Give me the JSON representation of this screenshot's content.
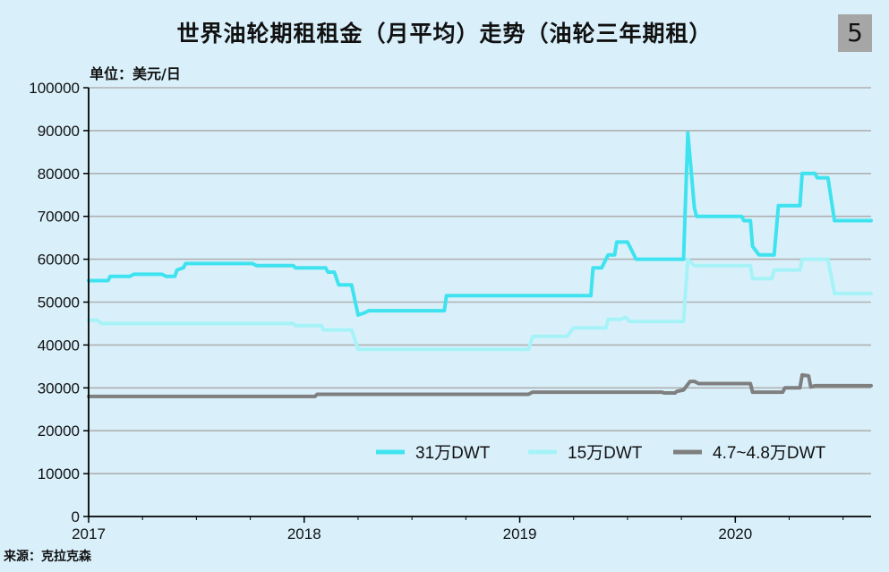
{
  "header": {
    "title": "世界油轮期租租金（月平均）走势（油轮三年期租）",
    "badge": "5",
    "unit": "单位：美元/日",
    "source": "来源：克拉克森"
  },
  "chart_data": {
    "type": "line",
    "title": "世界油轮期租租金（月平均）走势（油轮三年期租）",
    "ylabel": "单位：美元/日",
    "xlabel": "",
    "ylim": [
      0,
      100000
    ],
    "yticks": [
      0,
      10000,
      20000,
      30000,
      40000,
      50000,
      60000,
      70000,
      80000,
      90000,
      100000
    ],
    "xlim": [
      2017.0,
      2020.63
    ],
    "xticks": [
      "2017",
      "2018",
      "2019",
      "2020"
    ],
    "grid": "horizontal",
    "legend_position": "bottom-right",
    "colors": {
      "background": "#d9f0fb",
      "grid": "#b0b0b0",
      "axis": "#000000"
    },
    "series": [
      {
        "name": "31万DWT",
        "color": "#3fe3ef",
        "points": [
          [
            2017.0,
            55000
          ],
          [
            2017.04,
            55000
          ],
          [
            2017.09,
            55000
          ],
          [
            2017.1,
            56000
          ],
          [
            2017.19,
            56000
          ],
          [
            2017.21,
            56500
          ],
          [
            2017.34,
            56500
          ],
          [
            2017.36,
            56000
          ],
          [
            2017.4,
            56000
          ],
          [
            2017.41,
            57500
          ],
          [
            2017.44,
            58000
          ],
          [
            2017.45,
            59000
          ],
          [
            2017.76,
            59000
          ],
          [
            2017.78,
            58500
          ],
          [
            2017.95,
            58500
          ],
          [
            2017.96,
            58000
          ],
          [
            2018.1,
            58000
          ],
          [
            2018.11,
            57000
          ],
          [
            2018.14,
            57000
          ],
          [
            2018.16,
            54000
          ],
          [
            2018.22,
            54000
          ],
          [
            2018.25,
            47000
          ],
          [
            2018.28,
            47500
          ],
          [
            2018.3,
            48000
          ],
          [
            2018.65,
            48000
          ],
          [
            2018.66,
            51500
          ],
          [
            2019.33,
            51500
          ],
          [
            2019.34,
            58000
          ],
          [
            2019.38,
            58000
          ],
          [
            2019.41,
            61000
          ],
          [
            2019.44,
            61000
          ],
          [
            2019.45,
            64000
          ],
          [
            2019.5,
            64000
          ],
          [
            2019.54,
            60000
          ],
          [
            2019.76,
            60000
          ],
          [
            2019.78,
            89500
          ],
          [
            2019.81,
            72000
          ],
          [
            2019.82,
            70000
          ],
          [
            2020.03,
            70000
          ],
          [
            2020.04,
            69000
          ],
          [
            2020.07,
            69000
          ],
          [
            2020.08,
            63000
          ],
          [
            2020.11,
            61000
          ],
          [
            2020.18,
            61000
          ],
          [
            2020.2,
            72500
          ],
          [
            2020.3,
            72500
          ],
          [
            2020.31,
            80000
          ],
          [
            2020.37,
            80000
          ],
          [
            2020.38,
            79000
          ],
          [
            2020.43,
            79000
          ],
          [
            2020.46,
            69000
          ],
          [
            2020.63,
            69000
          ]
        ]
      },
      {
        "name": "15万DWT",
        "color": "#a6f3f7",
        "points": [
          [
            2017.0,
            45800
          ],
          [
            2017.04,
            45800
          ],
          [
            2017.06,
            45000
          ],
          [
            2017.95,
            45000
          ],
          [
            2017.96,
            44500
          ],
          [
            2018.08,
            44500
          ],
          [
            2018.09,
            43500
          ],
          [
            2018.22,
            43500
          ],
          [
            2018.25,
            39000
          ],
          [
            2019.04,
            39000
          ],
          [
            2019.06,
            42000
          ],
          [
            2019.22,
            42000
          ],
          [
            2019.25,
            44000
          ],
          [
            2019.4,
            44000
          ],
          [
            2019.41,
            46000
          ],
          [
            2019.47,
            46000
          ],
          [
            2019.49,
            46500
          ],
          [
            2019.51,
            45500
          ],
          [
            2019.76,
            45500
          ],
          [
            2019.78,
            60000
          ],
          [
            2019.81,
            58500
          ],
          [
            2020.07,
            58500
          ],
          [
            2020.08,
            55500
          ],
          [
            2020.17,
            55500
          ],
          [
            2020.18,
            57500
          ],
          [
            2020.3,
            57500
          ],
          [
            2020.31,
            60000
          ],
          [
            2020.43,
            60000
          ],
          [
            2020.46,
            52000
          ],
          [
            2020.63,
            52000
          ]
        ]
      },
      {
        "name": "4.7~4.8万DWT",
        "color": "#7f7f7f",
        "points": [
          [
            2017.0,
            28000
          ],
          [
            2018.05,
            28000
          ],
          [
            2018.06,
            28500
          ],
          [
            2019.04,
            28500
          ],
          [
            2019.06,
            29000
          ],
          [
            2019.66,
            29000
          ],
          [
            2019.67,
            28800
          ],
          [
            2019.72,
            28800
          ],
          [
            2019.73,
            29200
          ],
          [
            2019.76,
            29500
          ],
          [
            2019.79,
            31500
          ],
          [
            2019.81,
            31500
          ],
          [
            2019.83,
            31000
          ],
          [
            2020.07,
            31000
          ],
          [
            2020.08,
            29000
          ],
          [
            2020.22,
            29000
          ],
          [
            2020.23,
            30000
          ],
          [
            2020.3,
            30000
          ],
          [
            2020.31,
            33000
          ],
          [
            2020.34,
            32800
          ],
          [
            2020.35,
            30200
          ],
          [
            2020.37,
            30500
          ],
          [
            2020.63,
            30500
          ]
        ]
      }
    ]
  }
}
